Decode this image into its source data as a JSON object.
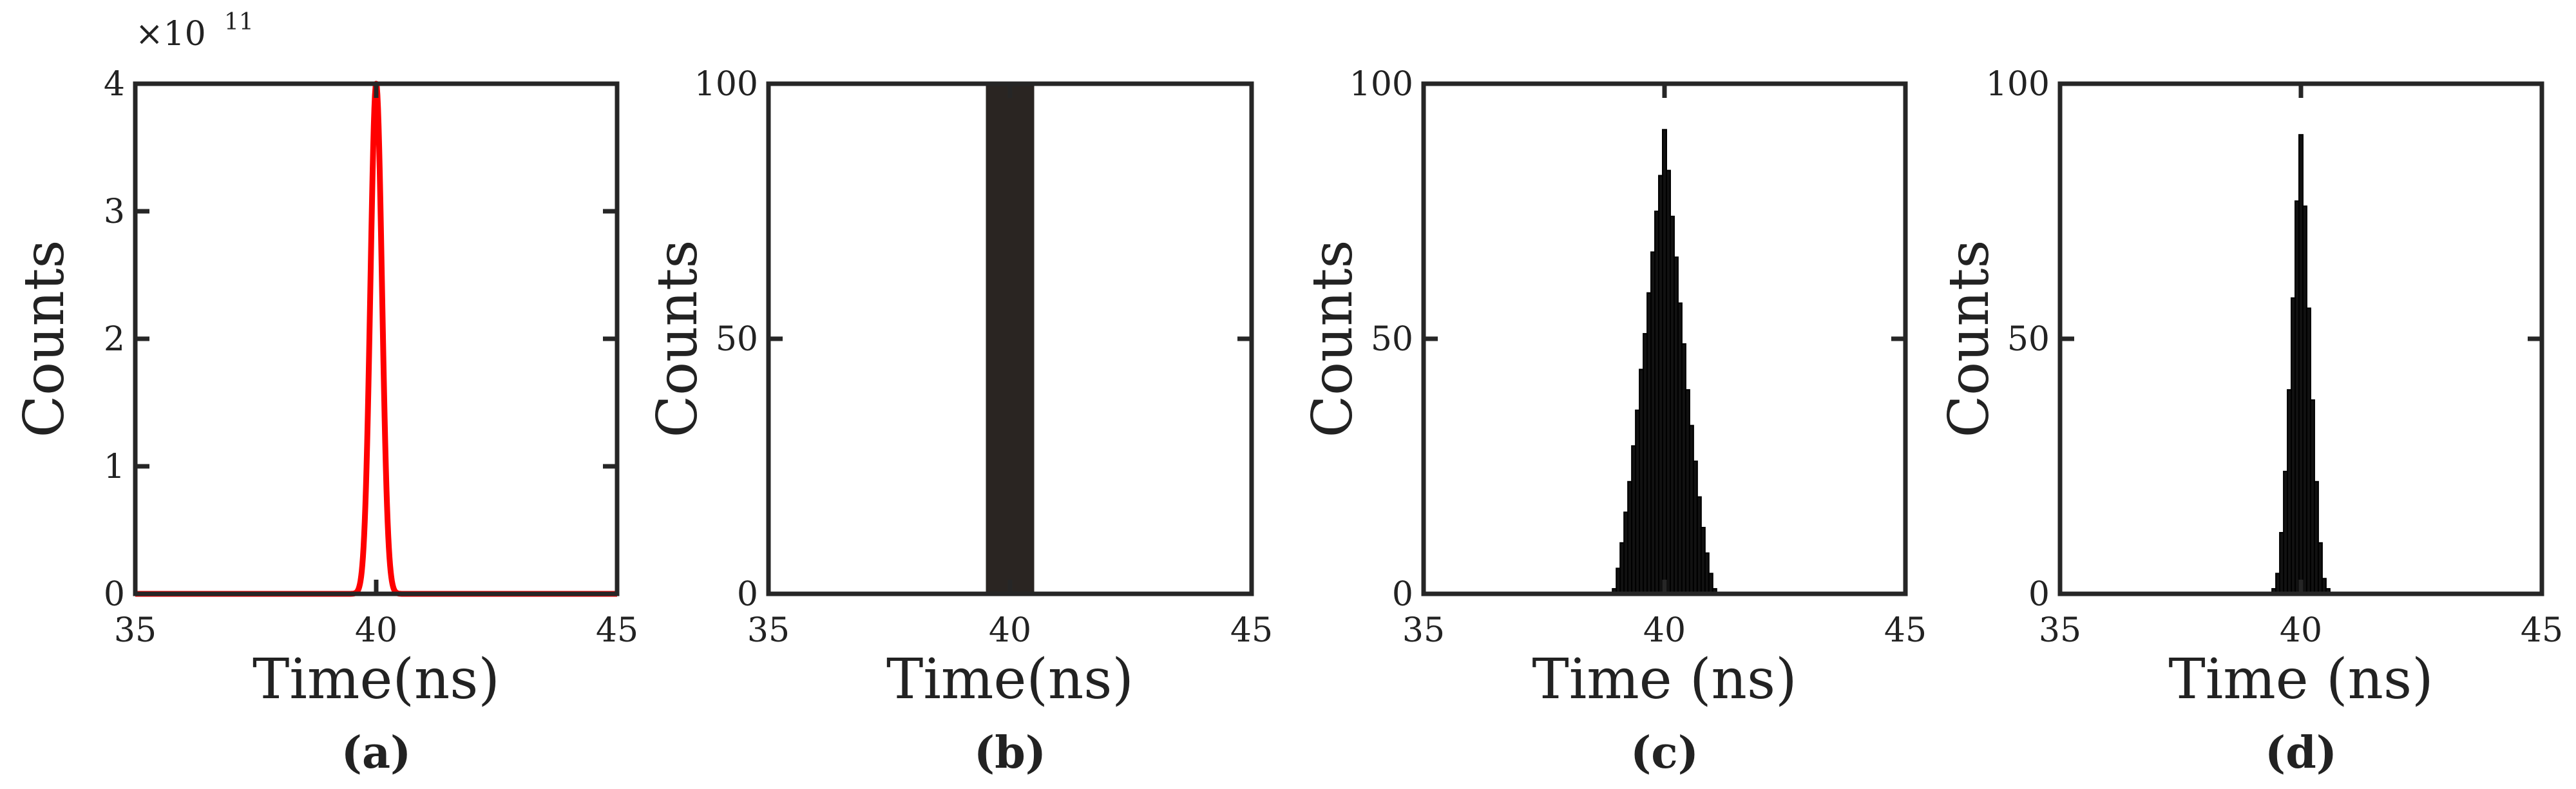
{
  "chart_data": [
    {
      "panel": "(a)",
      "type": "line",
      "xlabel": "Time(ns)",
      "ylabel": "Counts",
      "xlim": [
        35,
        45
      ],
      "ylim": [
        0,
        4
      ],
      "y_multiplier": "×10",
      "y_exponent": "11",
      "xticks": [
        "35",
        "40",
        "45"
      ],
      "yticks": [
        "0",
        "1",
        "2",
        "3",
        "4"
      ],
      "color": "#ff0000",
      "gaussian": {
        "center": 40,
        "sigma": 0.12,
        "amplitude": 4
      }
    },
    {
      "panel": "(b)",
      "type": "bar",
      "xlabel": "Time(ns)",
      "ylabel": "Counts",
      "xlim": [
        35,
        45
      ],
      "ylim": [
        0,
        100
      ],
      "xticks": [
        "35",
        "40",
        "45"
      ],
      "yticks": [
        "0",
        "50",
        "100"
      ],
      "color": "#2a2522",
      "bars": [
        {
          "x0": 39.5,
          "x1": 40.5,
          "value": 100
        }
      ]
    },
    {
      "panel": "(c)",
      "type": "bar",
      "xlabel": "Time (ns)",
      "ylabel": "Counts",
      "xlim": [
        35,
        45
      ],
      "ylim": [
        0,
        100
      ],
      "xticks": [
        "35",
        "40",
        "45"
      ],
      "yticks": [
        "0",
        "50",
        "100"
      ],
      "color": "#111111",
      "bar_width": 0.08,
      "x": [
        38.96,
        39.04,
        39.12,
        39.2,
        39.28,
        39.36,
        39.44,
        39.52,
        39.6,
        39.68,
        39.76,
        39.84,
        39.92,
        40.0,
        40.08,
        40.16,
        40.24,
        40.32,
        40.4,
        40.48,
        40.56,
        40.64,
        40.72,
        40.8,
        40.88,
        40.96,
        41.04
      ],
      "values": [
        1,
        5,
        10,
        16,
        22,
        29,
        36,
        44,
        51,
        59,
        67,
        75,
        82,
        91,
        83,
        74,
        66,
        57,
        49,
        40,
        33,
        26,
        19,
        13,
        8,
        4,
        1
      ]
    },
    {
      "panel": "(d)",
      "type": "bar",
      "xlabel": "Time (ns)",
      "ylabel": "Counts",
      "xlim": [
        35,
        45
      ],
      "ylim": [
        0,
        100
      ],
      "xticks": [
        "35",
        "40",
        "45"
      ],
      "yticks": [
        "0",
        "50",
        "100"
      ],
      "color": "#111111",
      "bar_width": 0.08,
      "x": [
        39.44,
        39.52,
        39.6,
        39.68,
        39.76,
        39.84,
        39.92,
        40.0,
        40.08,
        40.16,
        40.24,
        40.32,
        40.4,
        40.48,
        40.56
      ],
      "values": [
        1,
        4,
        12,
        24,
        40,
        58,
        77,
        90,
        76,
        56,
        38,
        22,
        10,
        3,
        1
      ]
    }
  ]
}
